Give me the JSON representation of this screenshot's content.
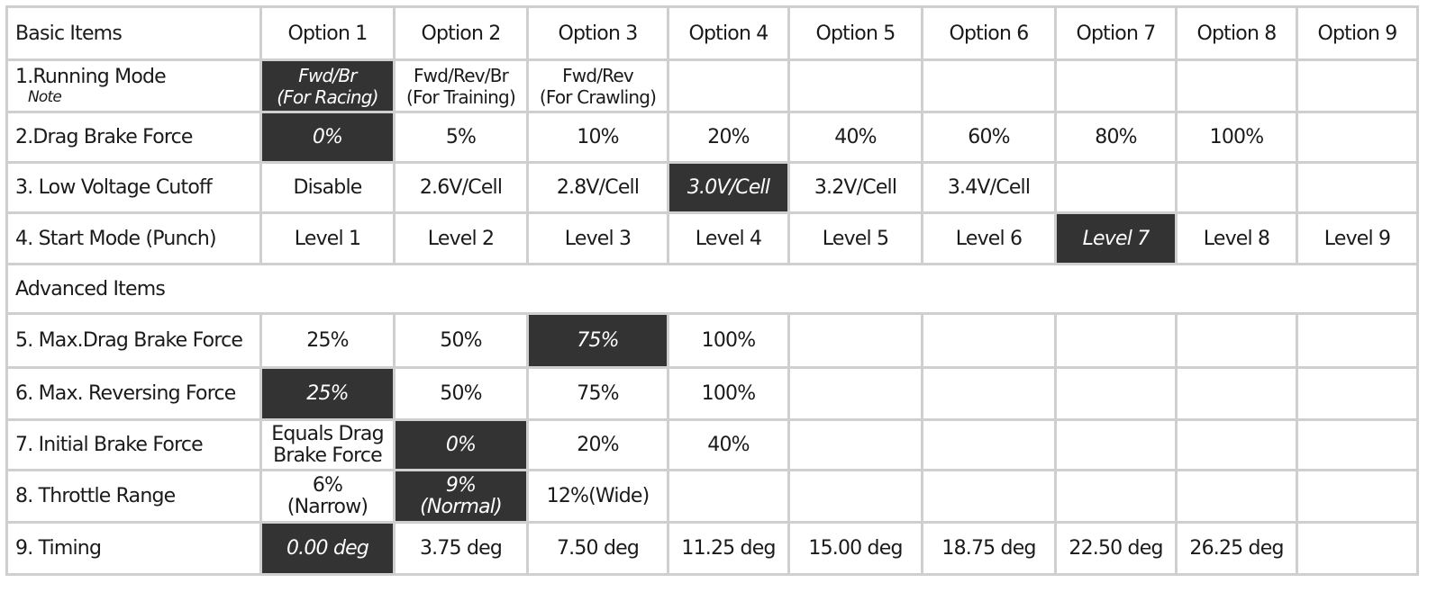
{
  "table": {
    "header": [
      "Basic Items",
      "Option 1",
      "Option 2",
      "Option 3",
      "Option 4",
      "Option 5",
      "Option 6",
      "Option 7",
      "Option 8",
      "Option 9"
    ],
    "running_mode": {
      "label": "1.Running Mode",
      "note": "Note",
      "options": [
        [
          "Fwd/Br",
          "(For Racing)"
        ],
        [
          "Fwd/Rev/Br",
          "(For Training)"
        ],
        [
          "Fwd/Rev",
          "(For Crawling)"
        ]
      ],
      "default_option": 1
    },
    "rows_basic": [
      {
        "label": "2.Drag Brake Force",
        "options": [
          "0%",
          "5%",
          "10%",
          "20%",
          "40%",
          "60%",
          "80%",
          "100%",
          ""
        ],
        "default_option": 1
      },
      {
        "label": "3. Low Voltage Cutoff",
        "options": [
          "Disable",
          "2.6V/Cell",
          "2.8V/Cell",
          "3.0V/Cell",
          "3.2V/Cell",
          "3.4V/Cell",
          "",
          "",
          ""
        ],
        "default_option": 4
      },
      {
        "label": "4. Start Mode (Punch)",
        "options": [
          "Level 1",
          "Level 2",
          "Level 3",
          "Level 4",
          "Level 5",
          "Level 6",
          "Level 7",
          "Level 8",
          "Level 9"
        ],
        "default_option": 7
      }
    ],
    "advanced_title": "Advanced Items",
    "rows_advanced_a": [
      {
        "label": "5. Max.Drag Brake Force",
        "options": [
          "25%",
          "50%",
          "75%",
          "100%",
          "",
          "",
          "",
          "",
          ""
        ],
        "default_option": 3
      },
      {
        "label": "6. Max. Reversing Force",
        "options": [
          "25%",
          "50%",
          "75%",
          "100%",
          "",
          "",
          "",
          "",
          ""
        ],
        "default_option": 1
      }
    ],
    "initial_brake": {
      "label": "7. Initial Brake Force",
      "opt1": [
        "Equals Drag",
        "Brake Force"
      ],
      "others": [
        "0%",
        "20%",
        "40%"
      ],
      "default_option": 2
    },
    "throttle_range": {
      "label": "8. Throttle Range",
      "options": [
        [
          "6%",
          "(Narrow)"
        ],
        [
          "9%",
          "(Normal)"
        ],
        [
          "12%(Wide)"
        ]
      ],
      "default_option": 2
    },
    "timing": {
      "label": "9. Timing",
      "options": [
        "0.00 deg",
        "3.75 deg",
        "7.50 deg",
        "11.25 deg",
        "15.00 deg",
        "18.75 deg",
        "22.50 deg",
        "26.25 deg",
        ""
      ],
      "default_option": 1
    }
  },
  "colors": {
    "default_fill": "#333333",
    "grid": "#cfcfcf",
    "text": "#1a1a1a"
  }
}
